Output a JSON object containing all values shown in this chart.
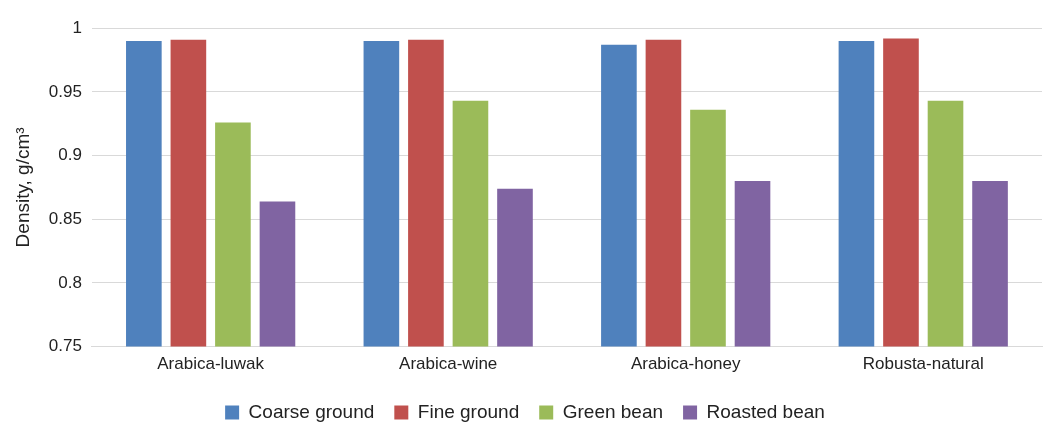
{
  "chart_data": {
    "type": "bar",
    "ylabel": "Density, g/cm³",
    "categories": [
      "Arabica-luwak",
      "Arabica-wine",
      "Arabica-honey",
      "Robusta-natural"
    ],
    "series": [
      {
        "name": "Coarse ground",
        "color": "#4f81bd",
        "values": [
          0.99,
          0.99,
          0.987,
          0.99
        ]
      },
      {
        "name": "Fine ground",
        "color": "#c0504d",
        "values": [
          0.991,
          0.991,
          0.991,
          0.992
        ]
      },
      {
        "name": "Green bean",
        "color": "#9bbb59",
        "values": [
          0.926,
          0.943,
          0.936,
          0.943
        ]
      },
      {
        "name": "Roasted bean",
        "color": "#8064a2",
        "values": [
          0.864,
          0.874,
          0.88,
          0.88
        ]
      }
    ],
    "ylim": [
      0.75,
      1
    ],
    "yticks": [
      0.75,
      0.8,
      0.85,
      0.9,
      0.95,
      1
    ],
    "grid": "y",
    "legend": "bottom"
  }
}
